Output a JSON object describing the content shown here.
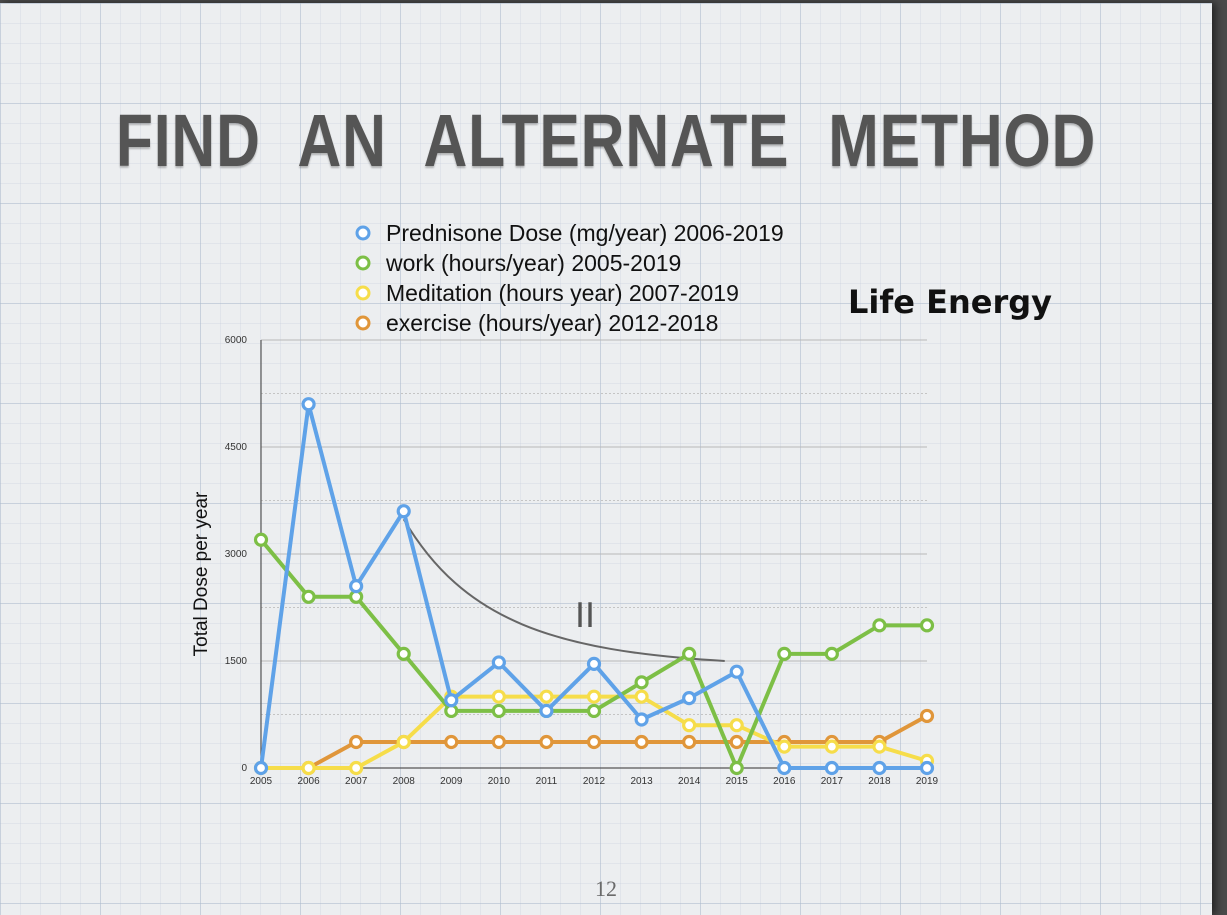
{
  "slide": {
    "title": "FIND AN ALTERNATE METHOD",
    "side_label": "Life Energy",
    "page_number": "12"
  },
  "chart_data": {
    "type": "line",
    "x": [
      "2005",
      "2006",
      "2007",
      "2008",
      "2009",
      "2010",
      "2011",
      "2012",
      "2013",
      "2014",
      "2015",
      "2016",
      "2017",
      "2018",
      "2019"
    ],
    "ylabel": "Total Dose per year",
    "ylim": [
      0,
      6000
    ],
    "yticks": [
      0,
      1500,
      3000,
      4500,
      6000
    ],
    "grid": true,
    "legend_placement": "top",
    "annotation": {
      "text": "II",
      "curve_from": [
        "2008",
        3600
      ],
      "curve_to": [
        "2015",
        1500
      ]
    },
    "series": [
      {
        "name": "Prednisone Dose (mg/year) 2006-2019",
        "color": "#5fa2e8",
        "values": [
          0,
          5100,
          2550,
          3600,
          950,
          1480,
          800,
          1460,
          680,
          980,
          1350,
          0,
          0,
          0,
          0
        ]
      },
      {
        "name": "work (hours/year) 2005-2019",
        "color": "#7dbf46",
        "values": [
          3200,
          2400,
          2400,
          1600,
          800,
          800,
          800,
          800,
          1200,
          1600,
          0,
          1600,
          1600,
          2000,
          2000
        ]
      },
      {
        "name": "Meditation (hours year) 2007-2019",
        "color": "#f6dd4a",
        "values": [
          0,
          0,
          0,
          365,
          1000,
          1000,
          1000,
          1000,
          1000,
          600,
          600,
          300,
          300,
          300,
          100
        ]
      },
      {
        "name": "exercise (hours/year) 2012-2018",
        "color": "#e0963a",
        "values": [
          null,
          0,
          365,
          365,
          365,
          365,
          365,
          365,
          365,
          365,
          365,
          365,
          365,
          365,
          730
        ]
      }
    ]
  }
}
